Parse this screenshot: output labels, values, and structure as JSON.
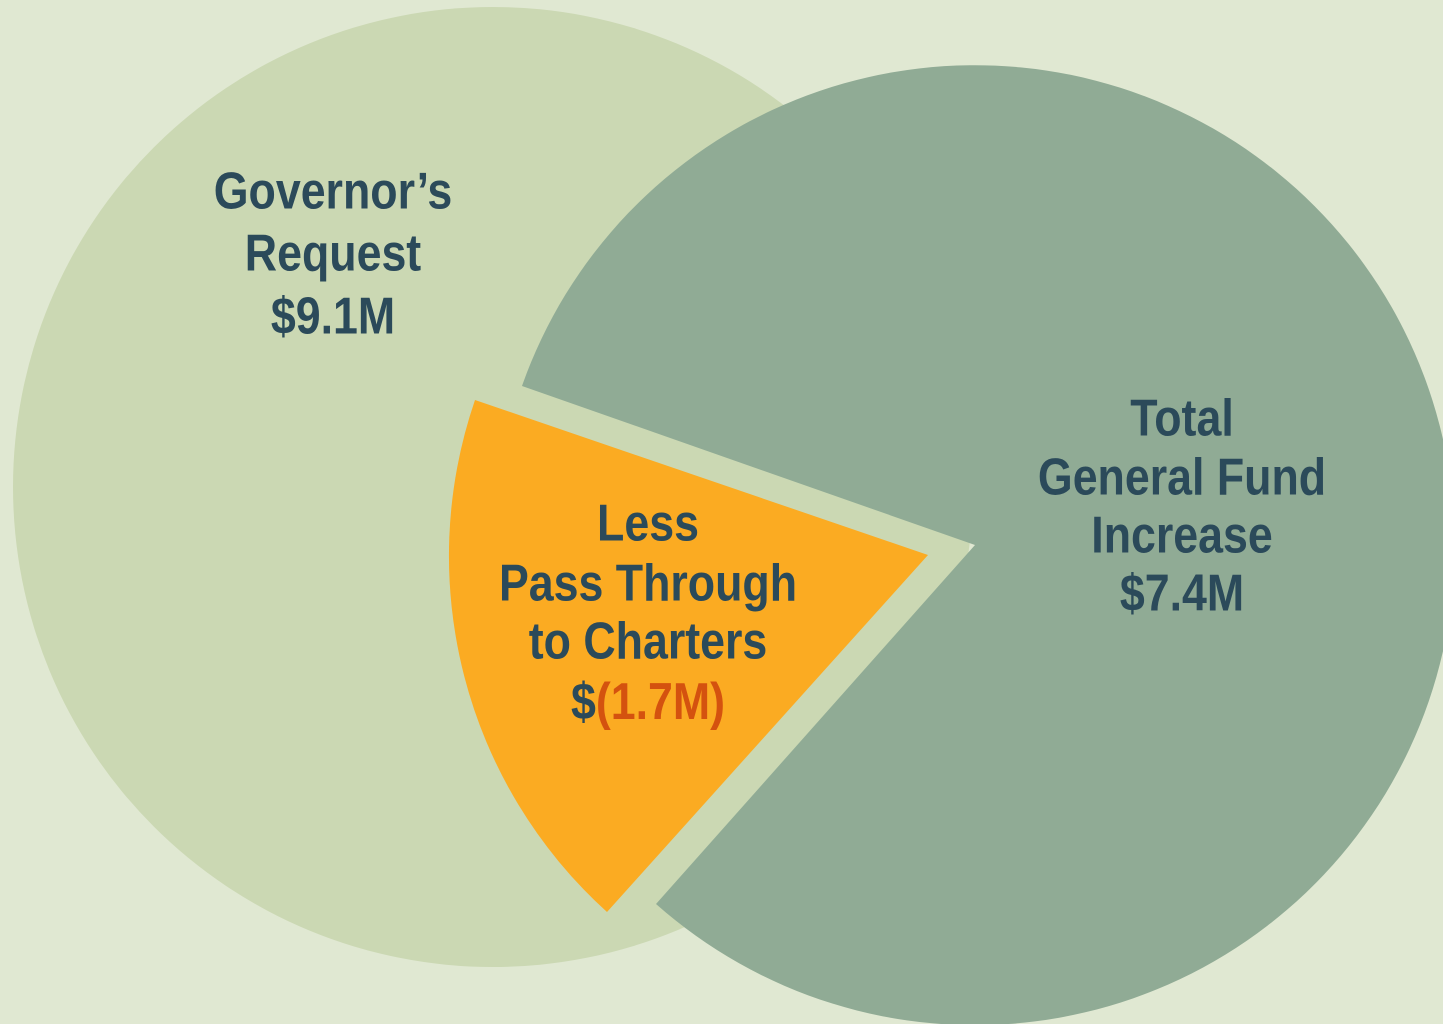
{
  "circles": [
    {
      "lines": [
        "Governor’s",
        "Request"
      ],
      "value": "$9.1M"
    },
    {
      "lines": [
        "Total",
        "General Fund",
        "Increase"
      ],
      "value": "$7.4M"
    }
  ],
  "wedge": {
    "lines": [
      "Less",
      "Pass Through",
      "to Charters"
    ],
    "value_prefix": "$",
    "value": "(1.7M)"
  }
}
